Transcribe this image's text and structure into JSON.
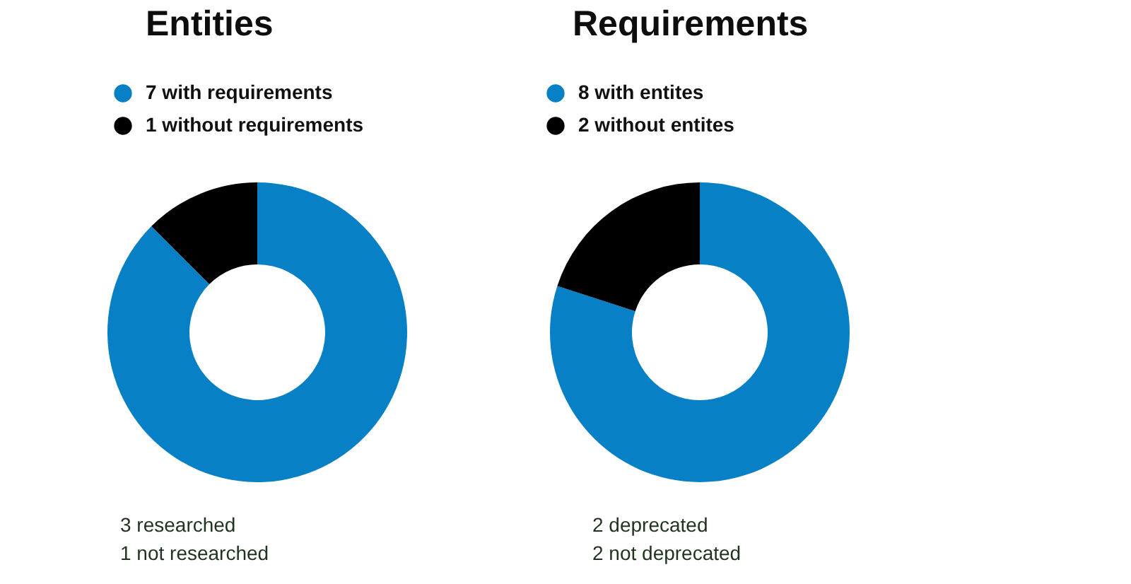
{
  "chart_data": [
    {
      "type": "donut",
      "title": "Entities",
      "categories": [
        "7 with requirements",
        "1 without requirements"
      ],
      "values": [
        7,
        1
      ],
      "colors": [
        "#0880c6",
        "#000000"
      ],
      "legend": "top left",
      "annotations": [
        "3 researched",
        "1 not researched"
      ]
    },
    {
      "type": "donut",
      "title": "Requirements",
      "categories": [
        "8 with entites",
        "2 without entites"
      ],
      "values": [
        8,
        2
      ],
      "colors": [
        "#0880c6",
        "#000000"
      ],
      "legend": "top left",
      "annotations": [
        "2 deprecated",
        "2 not deprecated"
      ]
    }
  ]
}
